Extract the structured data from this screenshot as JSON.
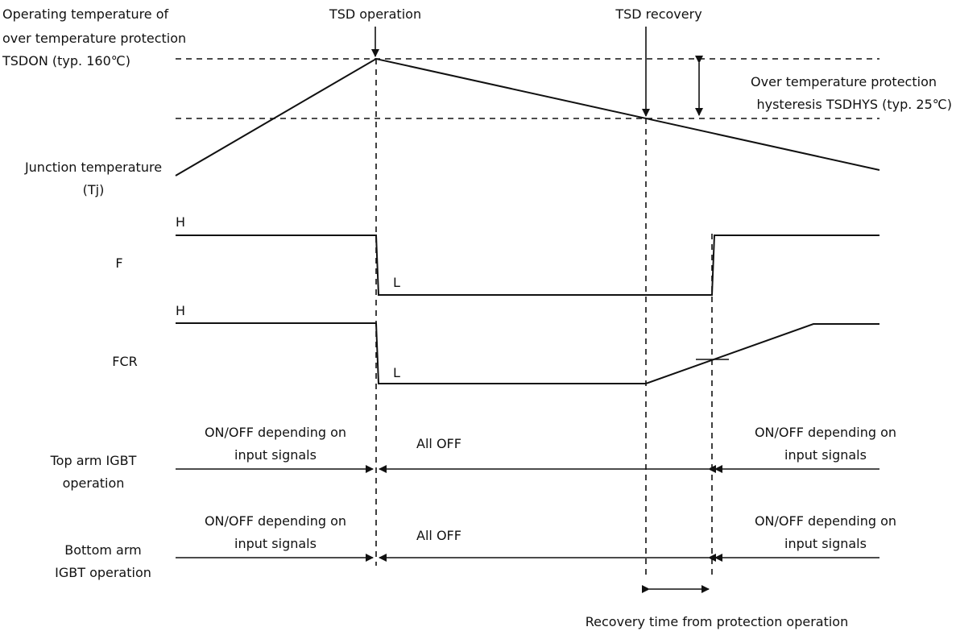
{
  "colors": {
    "line": "#111111",
    "background": "#ffffff"
  },
  "labels": {
    "tsdon": [
      "Operating temperature of",
      "over temperature protection",
      "TSDON (typ. 160℃)"
    ],
    "tsd_operation": "TSD operation",
    "tsd_recovery": "TSD recovery",
    "hysteresis": [
      "Over temperature protection",
      "hysteresis TSDHYS (typ. 25℃)"
    ],
    "junction": [
      "Junction temperature",
      "(Tj)"
    ],
    "f_signal": "F",
    "fcr_signal": "FCR",
    "high": "H",
    "low": "L",
    "top_arm": [
      "Top arm IGBT",
      "operation"
    ],
    "bottom_arm": [
      "Bottom arm",
      "IGBT operation"
    ],
    "on_off": [
      "ON/OFF depending on",
      "input signals"
    ],
    "all_off": "All OFF",
    "recovery_time": "Recovery time from protection operation"
  }
}
